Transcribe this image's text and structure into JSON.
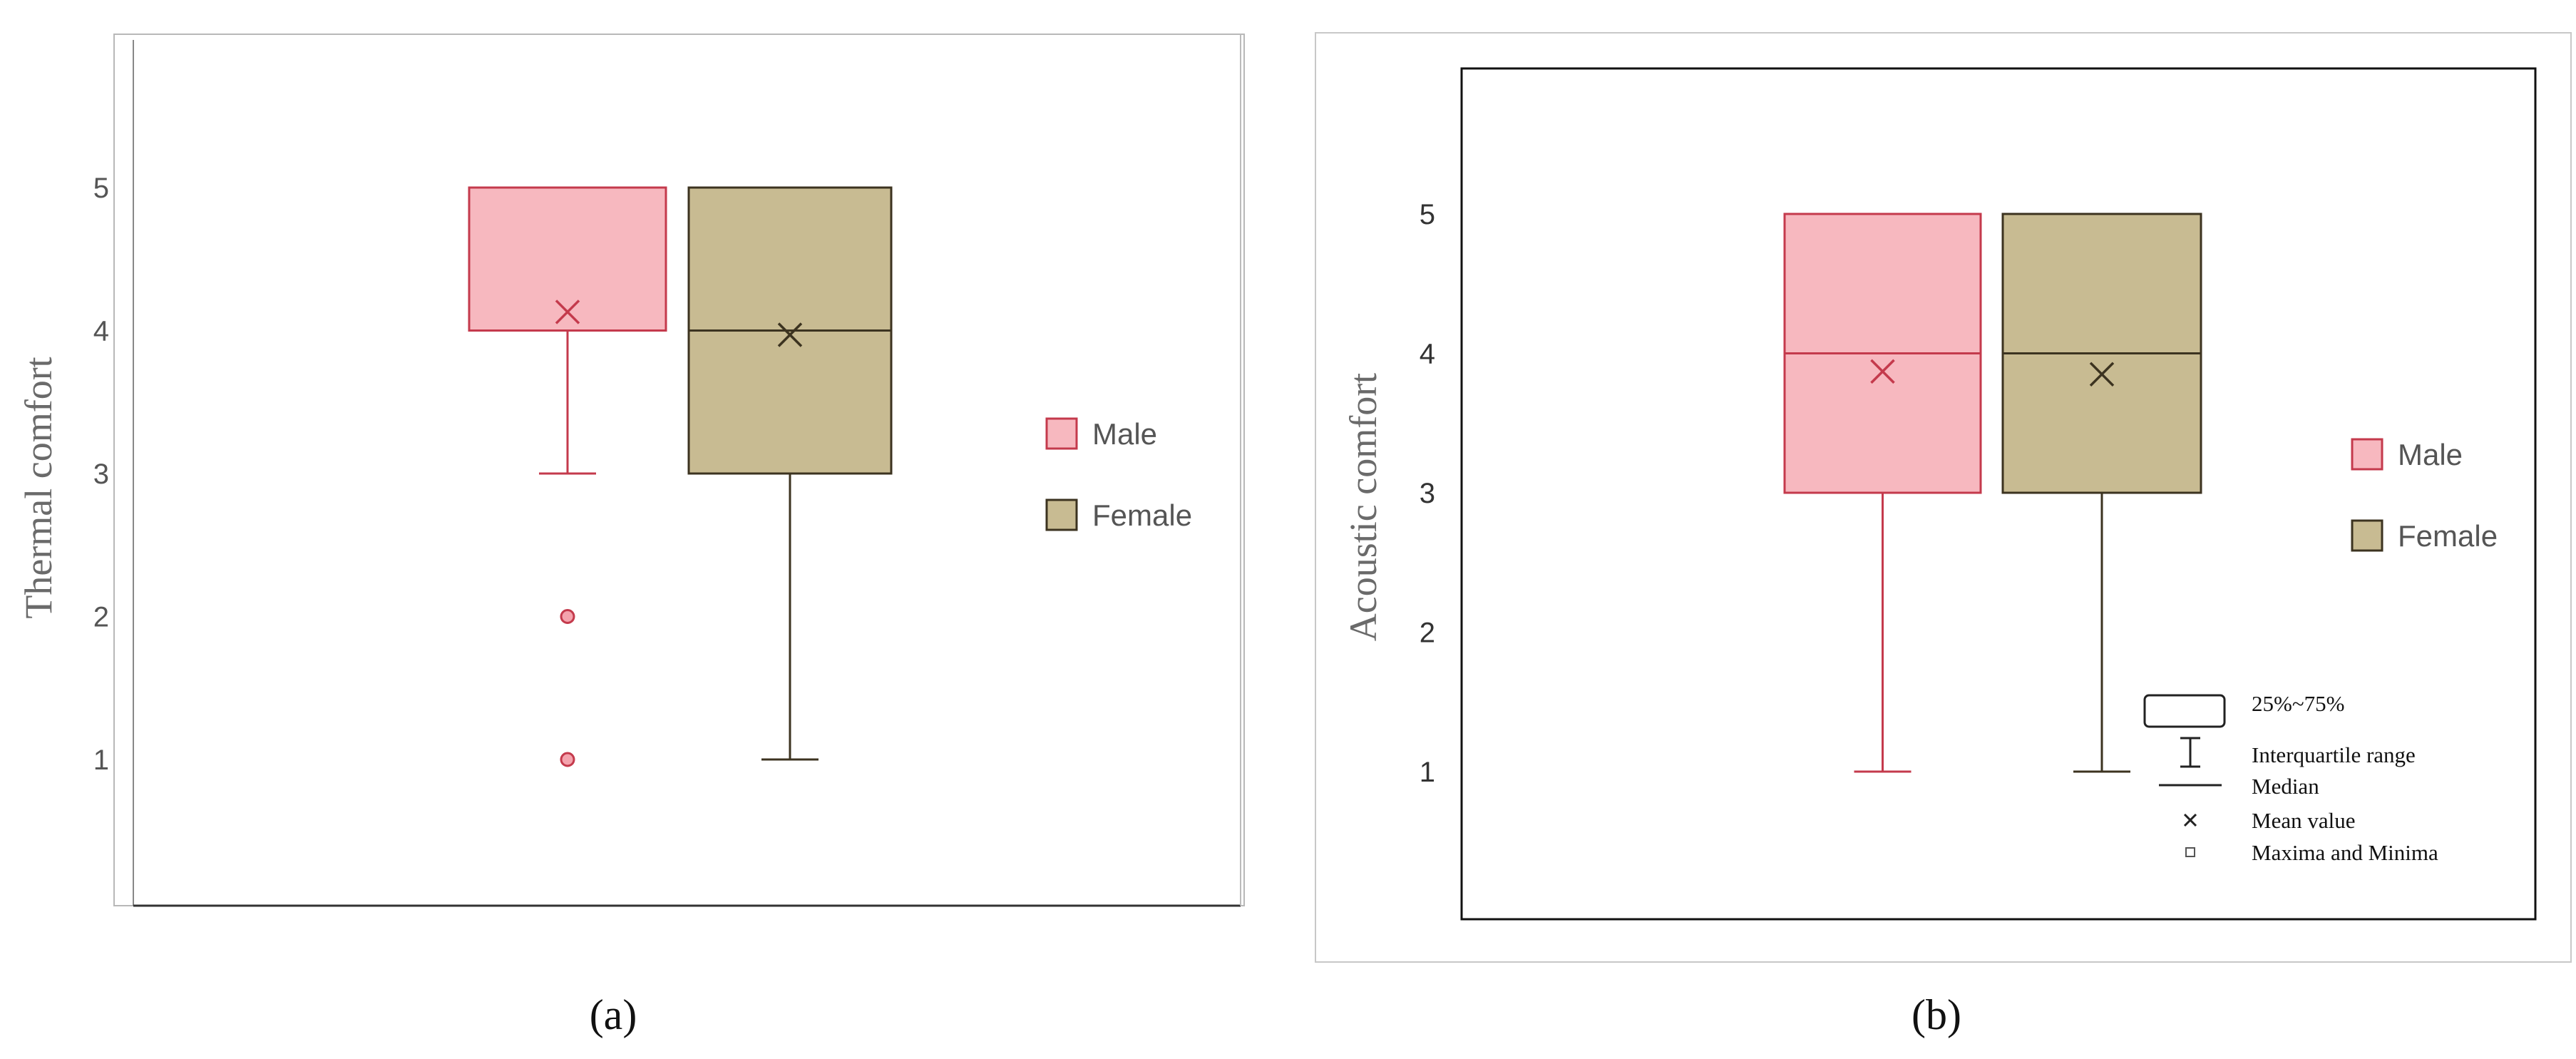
{
  "charts": [
    {
      "panel_label": "(a)",
      "chart_data": {
        "type": "box",
        "ylabel": "Thermal comfort",
        "yticks": [
          1,
          2,
          3,
          4,
          5
        ],
        "ylim": [
          0.0,
          6.0
        ],
        "legend": {
          "placement": "right",
          "entries": [
            "Male",
            "Female"
          ]
        },
        "series": [
          {
            "name": "Male",
            "q1": 4,
            "median": 4,
            "q3": 5,
            "whisker_low": 3,
            "whisker_high": 5,
            "mean": 4.13,
            "outliers": [
              2,
              1
            ],
            "color": "#f7b8bf",
            "edge": "#c43a4c"
          },
          {
            "name": "Female",
            "q1": 3,
            "median": 4,
            "q3": 5,
            "whisker_low": 1,
            "whisker_high": 5,
            "mean": 3.97,
            "outliers": [],
            "color": "#c8bb92",
            "edge": "#3c3320"
          }
        ]
      }
    },
    {
      "panel_label": "(b)",
      "chart_data": {
        "type": "box",
        "ylabel": "Acoustic comfort",
        "yticks": [
          1,
          2,
          3,
          4,
          5
        ],
        "ylim": [
          0.0,
          6.0
        ],
        "legend": {
          "placement": "right",
          "entries": [
            "Male",
            "Female"
          ]
        },
        "key": [
          "25%~75%",
          "Interquartile range",
          "Median",
          "Mean value",
          "Maxima and Minima"
        ],
        "series": [
          {
            "name": "Male",
            "q1": 3,
            "median": 4,
            "q3": 5,
            "whisker_low": 1,
            "whisker_high": 5,
            "mean": 3.87,
            "outliers": [],
            "color": "#f7b8bf",
            "edge": "#c43a4c"
          },
          {
            "name": "Female",
            "q1": 3,
            "median": 4,
            "q3": 5,
            "whisker_low": 1,
            "whisker_high": 5,
            "mean": 3.85,
            "outliers": [],
            "color": "#c8bb92",
            "edge": "#3c3320"
          }
        ]
      }
    }
  ]
}
